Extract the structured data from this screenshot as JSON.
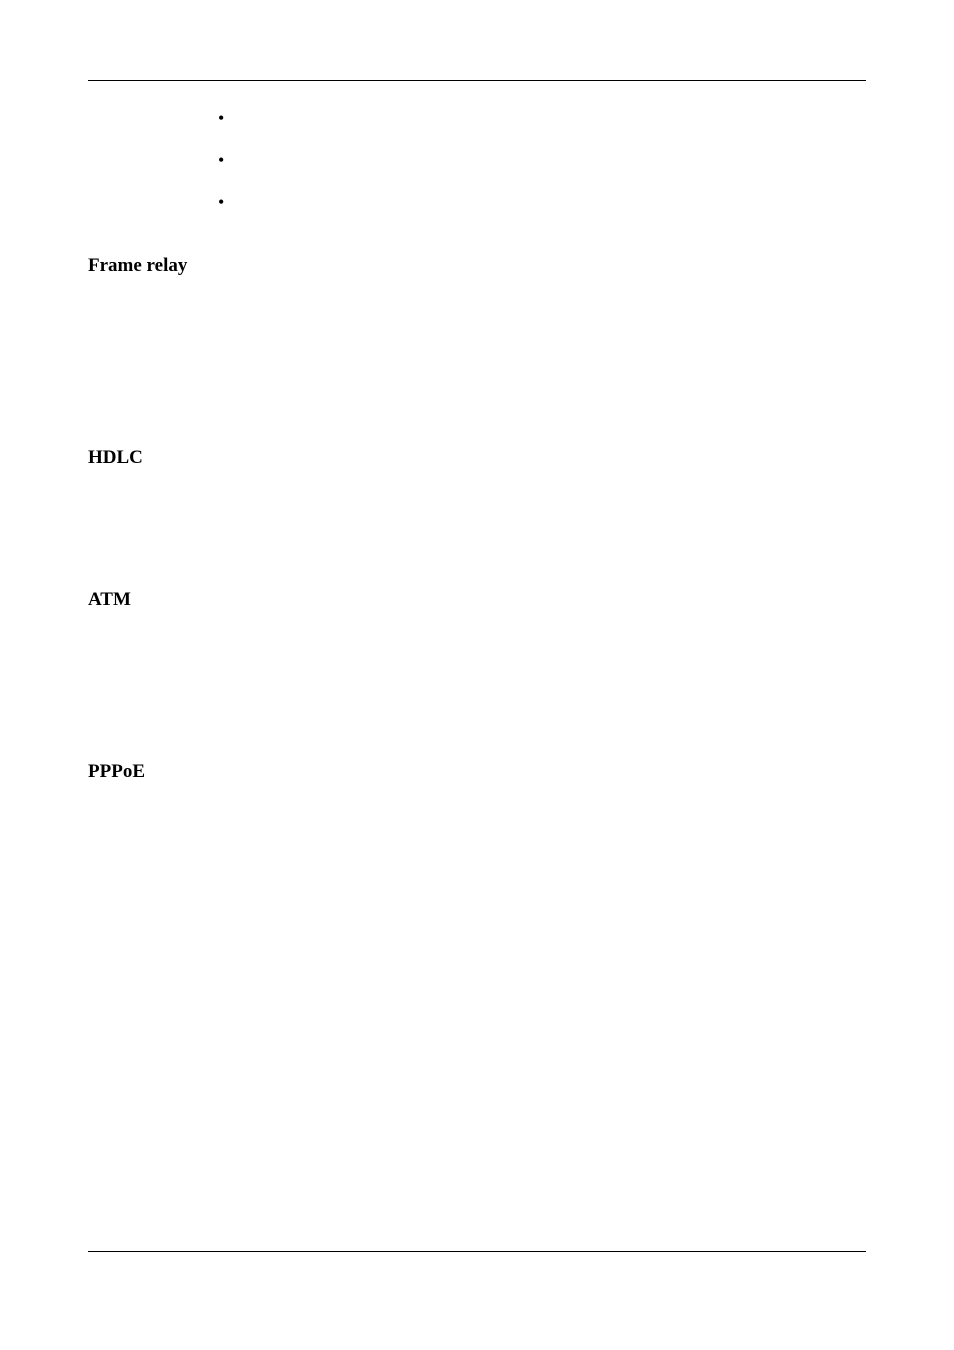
{
  "bullets": [
    "•",
    "•",
    "•"
  ],
  "headings": {
    "frame_relay": "Frame relay",
    "hdlc": "HDLC",
    "atm": "ATM",
    "pppoe": "PPPoE"
  },
  "style": {
    "page_bg": "#ffffff",
    "text_color": "#000000",
    "rule_color": "#000000",
    "heading_fontsize_pt": 14,
    "bullet_fontsize_pt": 13,
    "font_family": "serif"
  }
}
